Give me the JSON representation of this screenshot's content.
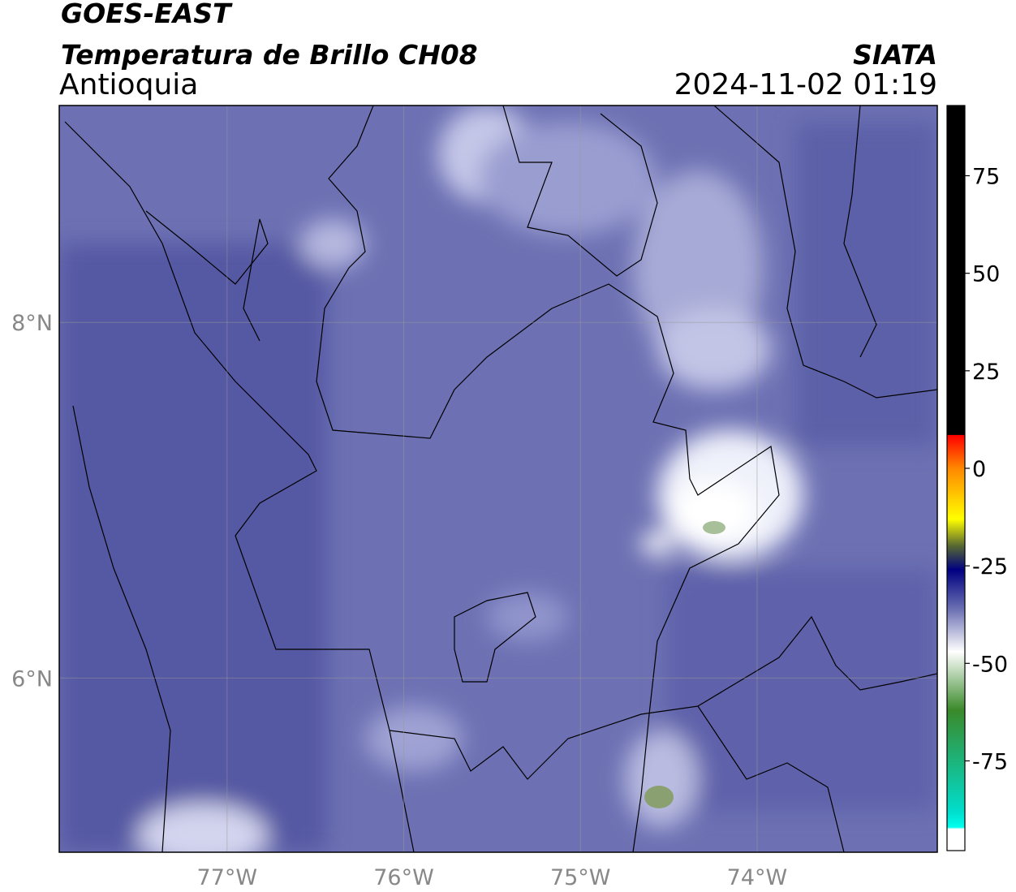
{
  "header": {
    "title": "GOES-EAST",
    "subtitle": "Temperatura de Brillo CH08",
    "region": "Antioquia",
    "source": "SIATA",
    "datetime": "2024-11-02 01:19"
  },
  "map": {
    "lonlim": [
      -77.95,
      -72.98
    ],
    "latlim": [
      5.02,
      9.22
    ],
    "lonticks": [
      {
        "value": -77,
        "label": "77°W"
      },
      {
        "value": -76,
        "label": "76°W"
      },
      {
        "value": -75,
        "label": "75°W"
      },
      {
        "value": -74,
        "label": "74°W"
      }
    ],
    "latticks": [
      {
        "value": 8,
        "label": "8°N"
      },
      {
        "value": 6,
        "label": "6°N"
      }
    ],
    "grid": true
  },
  "colorbar": {
    "lim": [
      -98,
      93
    ],
    "ticks": [
      75,
      50,
      25,
      0,
      -25,
      -50,
      -75
    ],
    "stops": [
      {
        "value": 93,
        "color": "#000000"
      },
      {
        "value": 8.6,
        "color": "#000000"
      },
      {
        "value": 8.5,
        "color": "#ff0000"
      },
      {
        "value": 0,
        "color": "#ff8800"
      },
      {
        "value": -13,
        "color": "#ffff00"
      },
      {
        "value": -20,
        "color": "#556633"
      },
      {
        "value": -26,
        "color": "#000080"
      },
      {
        "value": -36,
        "color": "#6a6fb2"
      },
      {
        "value": -47,
        "color": "#ffffff"
      },
      {
        "value": -62,
        "color": "#3a8a2a"
      },
      {
        "value": -88,
        "color": "#00ddcc"
      },
      {
        "value": -92,
        "color": "#00ffee"
      },
      {
        "value": -92.5,
        "color": "#ffffff"
      },
      {
        "value": -98,
        "color": "#ffffff"
      }
    ]
  }
}
